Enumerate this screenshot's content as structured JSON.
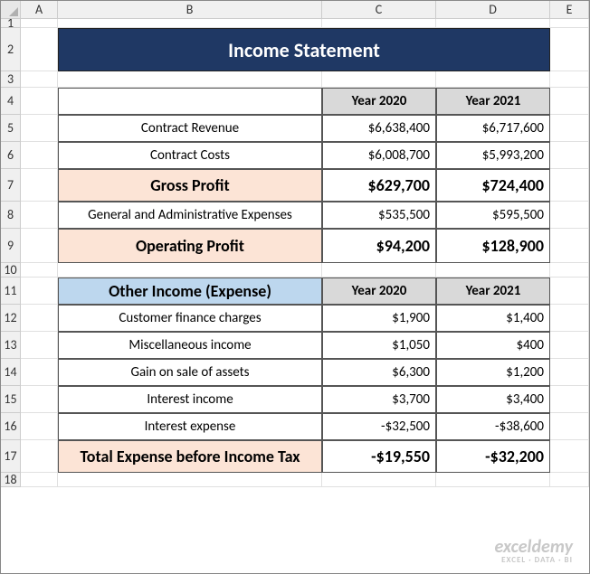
{
  "columns": [
    "A",
    "B",
    "C",
    "D",
    "E"
  ],
  "rows": [
    "1",
    "2",
    "3",
    "4",
    "5",
    "6",
    "7",
    "8",
    "9",
    "10",
    "11",
    "12",
    "13",
    "14",
    "15",
    "16",
    "17",
    "18"
  ],
  "title": "Income Statement",
  "headers": {
    "y1": "Year 2020",
    "y2": "Year 2021"
  },
  "section1": {
    "r1": {
      "label": "Contract Revenue",
      "y1": "$6,638,400",
      "y2": "$6,717,600"
    },
    "r2": {
      "label": "Contract Costs",
      "y1": "$6,008,700",
      "y2": "$5,993,200"
    },
    "r3": {
      "label": "Gross Profit",
      "y1": "$629,700",
      "y2": "$724,400"
    },
    "r4": {
      "label": "General and Administrative Expenses",
      "y1": "$535,500",
      "y2": "$595,500"
    },
    "r5": {
      "label": "Operating Profit",
      "y1": "$94,200",
      "y2": "$128,900"
    }
  },
  "section2": {
    "title": "Other Income (Expense)",
    "r1": {
      "label": "Customer finance charges",
      "y1": "$1,900",
      "y2": "$1,400"
    },
    "r2": {
      "label": "Miscellaneous income",
      "y1": "$1,050",
      "y2": "$400"
    },
    "r3": {
      "label": "Gain on sale of assets",
      "y1": "$6,300",
      "y2": "$1,200"
    },
    "r4": {
      "label": "Interest income",
      "y1": "$3,700",
      "y2": "$3,400"
    },
    "r5": {
      "label": "Interest expense",
      "y1": "-$32,500",
      "y2": "-$38,600"
    },
    "r6": {
      "label": "Total Expense before Income Tax",
      "y1": "-$19,550",
      "y2": "-$32,200"
    }
  },
  "watermark": {
    "line1": "exceldemy",
    "line2": "EXCEL · DATA · BI"
  }
}
